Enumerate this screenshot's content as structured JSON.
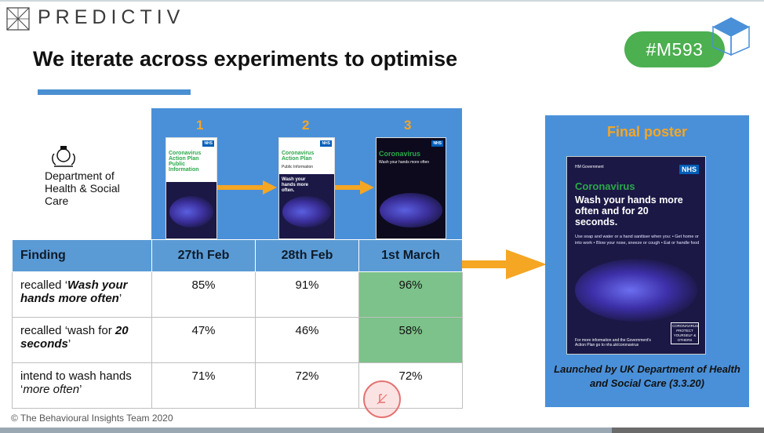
{
  "brand": {
    "name": "PREDICTIV"
  },
  "slide": {
    "title": "We iterate across experiments to optimise",
    "tag": "#M593"
  },
  "department": {
    "name": "Department of Health & Social Care"
  },
  "iterations": {
    "labels": [
      "1",
      "2",
      "3"
    ],
    "posters": [
      {
        "heading": "Coronavirus Action Plan Public Information",
        "nhs": "NHS"
      },
      {
        "heading": "Coronavirus Action Plan",
        "subheading": "Public Information",
        "body": "Wash your hands more often.",
        "nhs": "NHS"
      },
      {
        "heading": "Coronavirus",
        "body": "Wash your hands more often",
        "nhs": "NHS"
      }
    ]
  },
  "table": {
    "headers": [
      "Finding",
      "27th Feb",
      "28th Feb",
      "1st March"
    ],
    "rows": [
      {
        "finding_pre": "recalled ‘",
        "finding_em": "Wash your hands more often",
        "finding_post": "’",
        "values": [
          "85%",
          "91%",
          "96%"
        ],
        "highlight": [
          false,
          false,
          true
        ]
      },
      {
        "finding_pre": "recalled ‘wash for ",
        "finding_em": "20 seconds",
        "finding_post": "’",
        "values": [
          "47%",
          "46%",
          "58%"
        ],
        "highlight": [
          false,
          false,
          true
        ]
      },
      {
        "finding_pre": "intend to wash hands ‘",
        "finding_em": "more often",
        "finding_post": "’",
        "values": [
          "71%",
          "72%",
          "72%"
        ],
        "highlight": [
          false,
          false,
          false
        ]
      }
    ]
  },
  "final": {
    "title": "Final poster",
    "poster": {
      "hm": "HM Government",
      "nhs": "NHS",
      "heading": "Coronavirus",
      "body": "Wash your hands more often and for 20 seconds.",
      "instructions": "Use soap and water or a hand sanitiser when you: • Get home or into work • Blow your nose, sneeze or cough • Eat or handle food",
      "footer": "For more information and the Government's Action Plan go to nhs.uk/coronavirus",
      "protect": "CORONAVIRUS PROTECT YOURSELF & OTHERS"
    },
    "caption": "Launched by UK Department of Health and Social Care (3.3.20)"
  },
  "footer": {
    "copyright": "© The Behavioural Insights Team 2020"
  },
  "colors": {
    "accent_blue": "#4a90d9",
    "orange": "#f5a623",
    "green_highlight": "#7cc28a",
    "tag_green": "#4caf50"
  }
}
